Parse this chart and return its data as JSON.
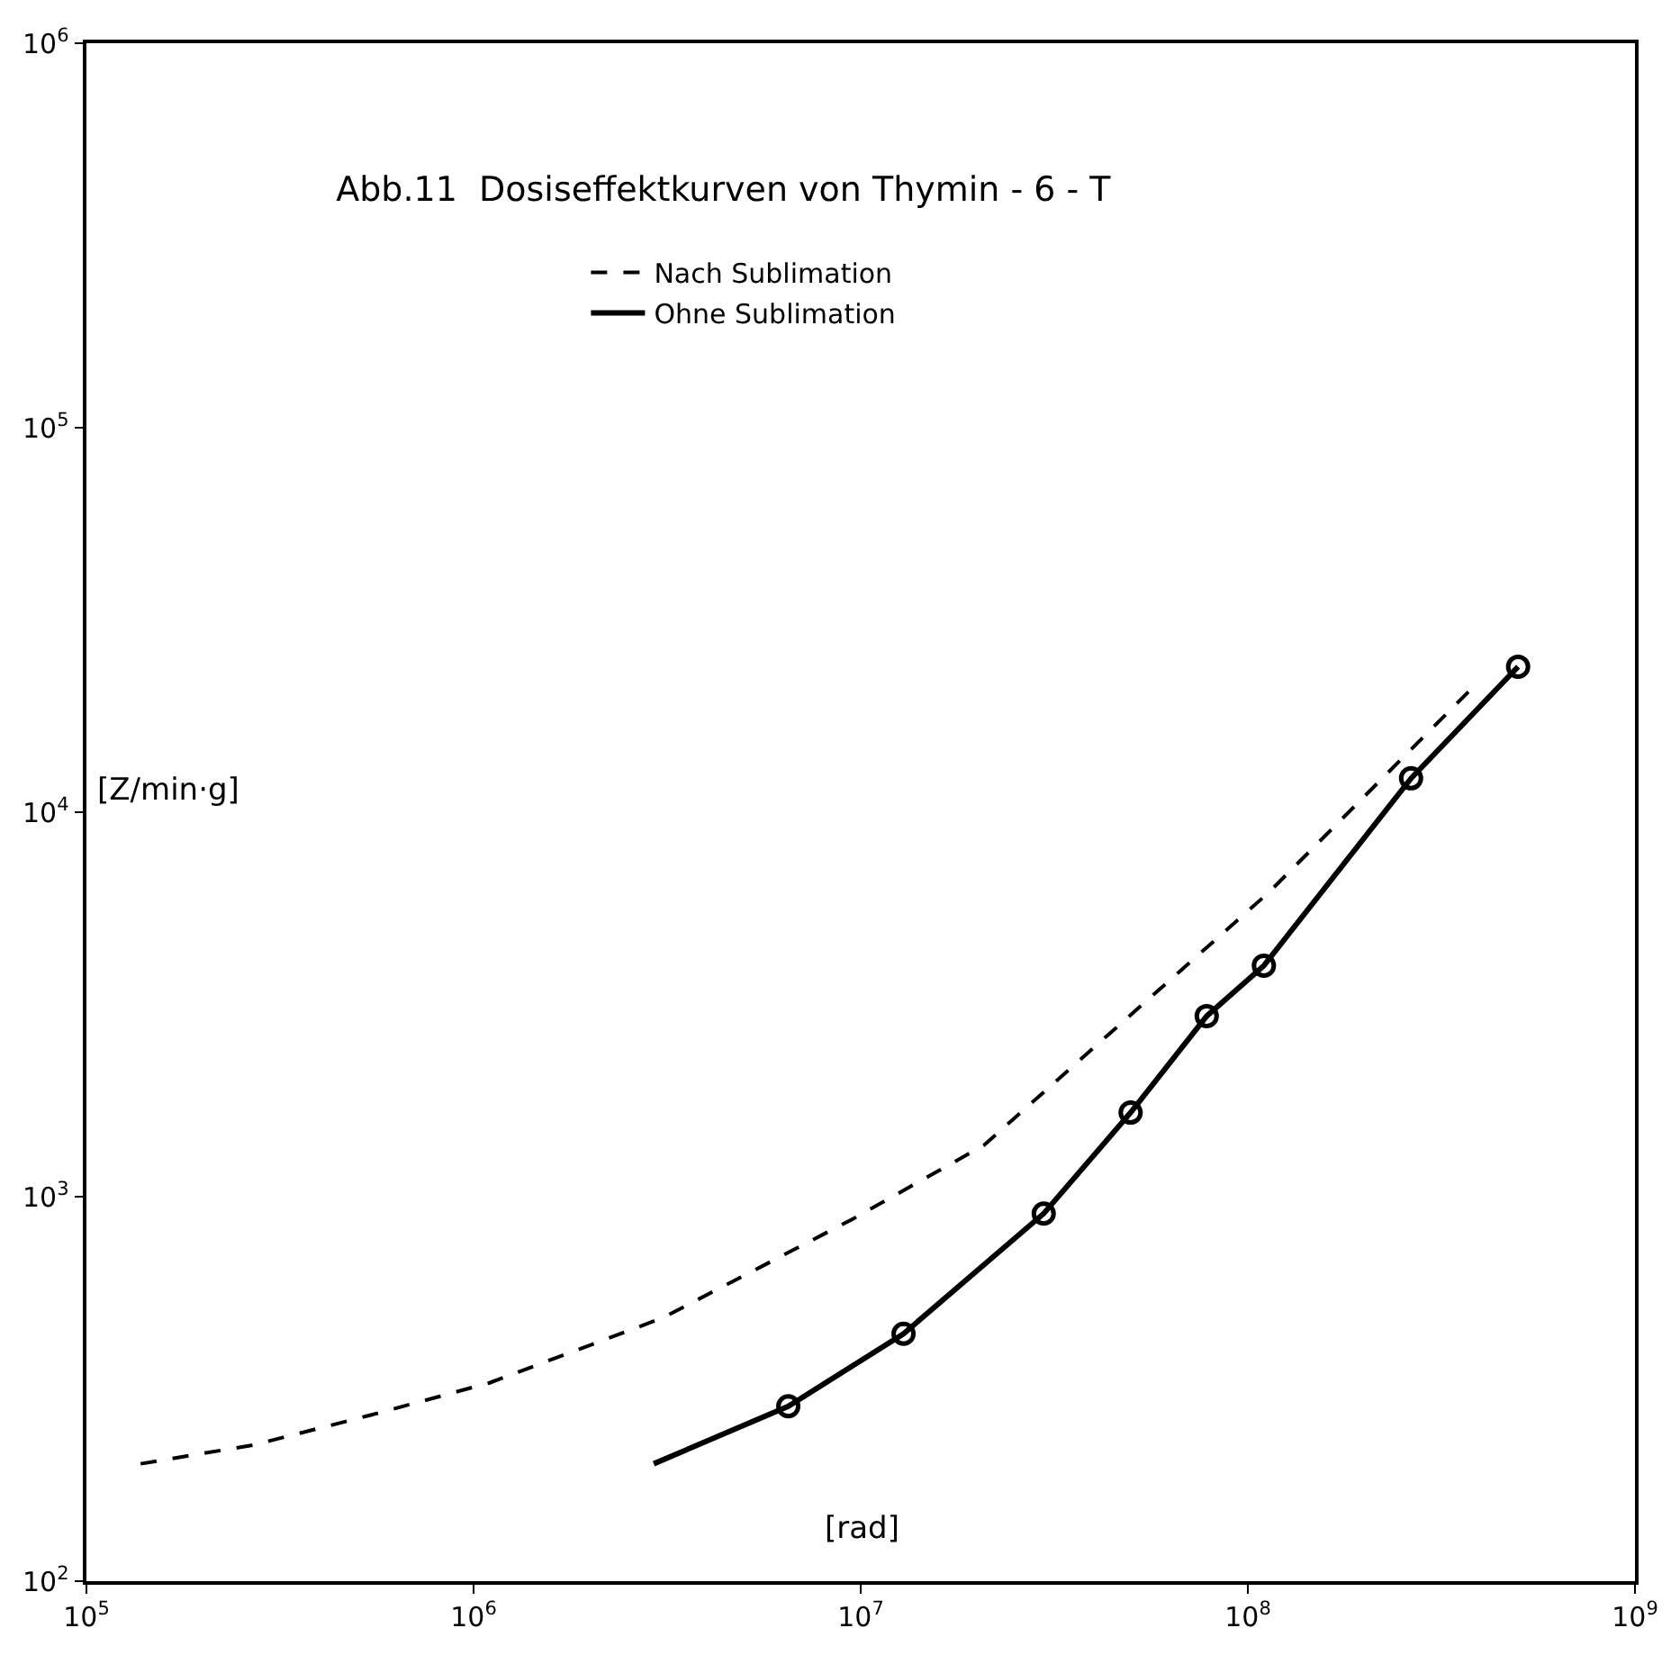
{
  "chart_data": {
    "type": "line",
    "title": "Abb.11  Dosiseffektkurven von Thymin - 6 - T",
    "xlabel": "[rad]",
    "ylabel": "[Z/min·g]",
    "log": "xy",
    "legend": "top",
    "xlim": [
      100000,
      1000000000
    ],
    "ylim": [
      100,
      1000000
    ],
    "xticks": [
      {
        "value": 100000,
        "label": "10$^{5}$"
      },
      {
        "value": 1000000,
        "label": "10$^{6}$"
      },
      {
        "value": 10000000,
        "label": "10$^{7}$"
      },
      {
        "value": 100000000,
        "label": "10$^{8}$"
      },
      {
        "value": 1000000000,
        "label": "10$^{9}$"
      }
    ],
    "yticks": [
      {
        "value": 100,
        "label": "10$^{2}$"
      },
      {
        "value": 1000,
        "label": "10$^{3}$"
      },
      {
        "value": 10000,
        "label": "10$^{4}$"
      },
      {
        "value": 100000,
        "label": "10$^{5}$"
      },
      {
        "value": 1000000,
        "label": "10$^{6}$"
      }
    ],
    "series": [
      {
        "name": "Nach Sublimation",
        "color": "#000000",
        "line_style": "dashed",
        "marker": "none",
        "x": [
          138000,
          270000,
          540000,
          1100000,
          3080000,
          9500000,
          20800000,
          50000000,
          113000000,
          373000000
        ],
        "values": [
          202,
          226,
          270,
          328,
          484,
          873,
          1360,
          2980,
          6170,
          20650
        ]
      },
      {
        "name": "Ohne Sublimation",
        "color": "#000000",
        "line_style": "solid",
        "marker": "none",
        "x": [
          2920000,
          6500000,
          12900000,
          29700000,
          49800000,
          78300000,
          110000000,
          264000000,
          499000000
        ],
        "values": [
          202,
          285,
          440,
          904,
          1655,
          2950,
          3990,
          12250,
          23900
        ]
      },
      {
        "type": "scatter",
        "color": "#000000",
        "marker": "circle",
        "x": [
          6500000,
          12900000,
          29700000,
          49800000,
          78300000,
          110000000,
          264000000,
          499000000
        ],
        "values": [
          285,
          440,
          904,
          1655,
          2950,
          3990,
          12250,
          23900
        ]
      }
    ]
  }
}
